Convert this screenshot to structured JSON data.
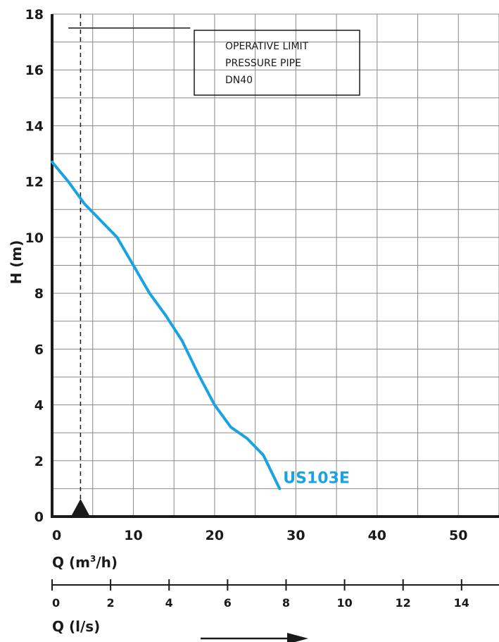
{
  "chart_data": {
    "type": "line",
    "x_axis": {
      "label_main": "Q (m",
      "label_sup": "3",
      "label_tail": "/h)",
      "range": [
        0,
        55
      ],
      "ticks": [
        0,
        10,
        20,
        30,
        40,
        50
      ],
      "grid_step": 5
    },
    "y_axis": {
      "label": "H (m)",
      "range": [
        0,
        18
      ],
      "ticks": [
        0,
        2,
        4,
        6,
        8,
        10,
        12,
        14,
        16,
        18
      ],
      "grid_step": 1
    },
    "secondary_x_axis": {
      "label": "Q (l/s)",
      "range": [
        0,
        15.28
      ],
      "ticks": [
        0,
        2,
        4,
        6,
        8,
        10,
        12,
        14
      ]
    },
    "grid": true,
    "series": [
      {
        "name": "US103E",
        "color": "#1aa3e0",
        "x": [
          0,
          2,
          4,
          6,
          8,
          10,
          12,
          14,
          16,
          18,
          20,
          22,
          24,
          26,
          28
        ],
        "y": [
          12.7,
          12.0,
          11.2,
          10.6,
          10.0,
          9.0,
          8.0,
          7.2,
          6.3,
          5.1,
          4.0,
          3.2,
          2.8,
          2.2,
          1.0
        ]
      }
    ],
    "limit_line": {
      "y": 17.5,
      "x_range": [
        2,
        17
      ],
      "label_lines": [
        "OPERATIVE LIMIT",
        "PRESSURE PIPE",
        "DN40"
      ]
    },
    "min_flow_marker": {
      "x": 3.5
    }
  }
}
